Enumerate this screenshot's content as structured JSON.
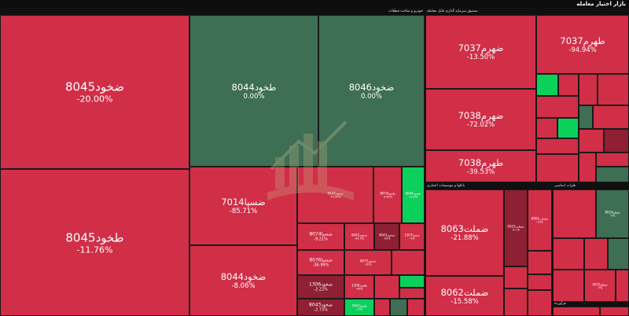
{
  "title": "بازار اختیار معامله",
  "sectors": {
    "auto": "خودرو و ساخت قطعات",
    "fund": "صندوق سرمایه گذاری قابل معامله",
    "banks": "بانکها و موسسات اعتباری",
    "metals": "فلزات اساسی",
    "insurance": "فرآورده"
  },
  "cells": {
    "a1": {
      "sym": "ضخود8045",
      "pct": "-20.00%"
    },
    "a2": {
      "sym": "طخود8045",
      "pct": "-11.76%"
    },
    "a3": {
      "sym": "طخود8044",
      "pct": "0.00%"
    },
    "a4": {
      "sym": "ضخود8046",
      "pct": "0.00%"
    },
    "a5": {
      "sym": "ضسپا7014",
      "pct": "-85.71%"
    },
    "a6": {
      "sym": "ضخود8044",
      "pct": "-8.06%"
    },
    "a7": {
      "sym": "ضخود9043",
      "pct": "-70.59%"
    },
    "a8": {
      "sym": "طسپا8074",
      "pct": "-3.85%"
    },
    "a9": {
      "sym": "ضخود9044",
      "pct": "+0.0%"
    },
    "a10": {
      "sym": "ضسپا8074",
      "pct": "-9.21%"
    },
    "a11": {
      "sym": "ضخود9042",
      "pct": "-34.5%"
    },
    "a12": {
      "sym": "ضخود9043",
      "pct": "-20%"
    },
    "a13": {
      "sym": "ضسپا1307",
      "pct": "-4%"
    },
    "a14": {
      "sym": "ضسپا8076",
      "pct": "-36.99%"
    },
    "a15": {
      "sym": "ضخود8075",
      "pct": "-30%"
    },
    "a16": {
      "sym": "ضخود1306",
      "pct": "-2.22%"
    },
    "a17": {
      "sym": "طخود1308",
      "pct": "-45%"
    },
    "a18": {
      "sym": "ضخود8043",
      "pct": "-2.73%"
    },
    "a19": {
      "sym": "طسپا7041",
      "pct": "+5%"
    },
    "f1": {
      "sym": "ضهرم7037",
      "pct": "-13.50%"
    },
    "f2": {
      "sym": "طهرم7037",
      "pct": "-94.94%"
    },
    "f3": {
      "sym": "ضهرم7038",
      "pct": "-72.02%"
    },
    "f4": {
      "sym": "طهرم7038",
      "pct": "-39.53%"
    },
    "b1": {
      "sym": "ضملت8063",
      "pct": "-21.88%"
    },
    "b2": {
      "sym": "ضملت8062",
      "pct": "-15.58%"
    },
    "b3": {
      "sym": "ضملت9023",
      "pct": "-3.7%"
    },
    "b4": {
      "sym": "ضملت8061",
      "pct": "-15%"
    },
    "m1": {
      "sym": "ضفلو8014",
      "pct": "-5%"
    },
    "m2": {
      "sym": "ضفلو9025",
      "pct": "-7%"
    }
  }
}
